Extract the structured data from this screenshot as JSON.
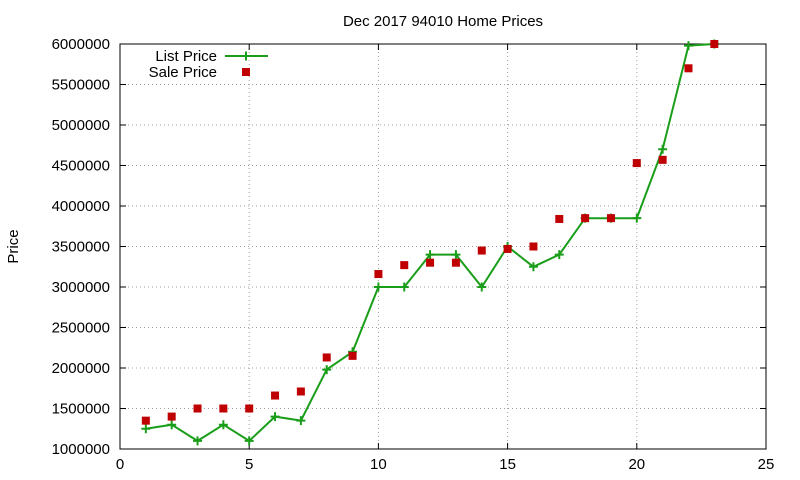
{
  "chart_data": {
    "type": "line",
    "title": "Dec 2017 94010 Home Prices",
    "xlabel": "",
    "ylabel": "Price",
    "xlim": [
      0,
      25
    ],
    "ylim": [
      1000000,
      6000000
    ],
    "xticks": [
      "0",
      "5",
      "10",
      "15",
      "20",
      "25"
    ],
    "yticks": [
      "1000000",
      "1500000",
      "2000000",
      "2500000",
      "3000000",
      "3500000",
      "4000000",
      "4500000",
      "5000000",
      "5500000",
      "6000000"
    ],
    "grid": true,
    "legend_position": "top-left",
    "series": [
      {
        "name": "List Price",
        "style": "line-with-plus-markers",
        "color": "#1a9e1a",
        "x": [
          1,
          2,
          3,
          4,
          5,
          6,
          7,
          8,
          9,
          10,
          11,
          12,
          13,
          14,
          15,
          16,
          17,
          18,
          19,
          20,
          21,
          22,
          23
        ],
        "y": [
          1250000,
          1300000,
          1100000,
          1300000,
          1100000,
          1400000,
          1350000,
          1980000,
          2200000,
          3000000,
          3000000,
          3400000,
          3400000,
          3000000,
          3500000,
          3250000,
          3400000,
          3850000,
          3850000,
          3850000,
          4700000,
          5980000,
          6000000
        ]
      },
      {
        "name": "Sale Price",
        "style": "square-markers",
        "color": "#c00000",
        "x": [
          1,
          2,
          3,
          4,
          5,
          6,
          7,
          8,
          9,
          10,
          11,
          12,
          13,
          14,
          15,
          16,
          17,
          18,
          19,
          20,
          21,
          22,
          23
        ],
        "y": [
          1350000,
          1400000,
          1500000,
          1500000,
          1500000,
          1660000,
          1710000,
          2130000,
          2150000,
          3160000,
          3270000,
          3300000,
          3300000,
          3450000,
          3470000,
          3500000,
          3840000,
          3850000,
          3850000,
          4530000,
          4570000,
          5700000,
          6000000
        ]
      }
    ]
  }
}
